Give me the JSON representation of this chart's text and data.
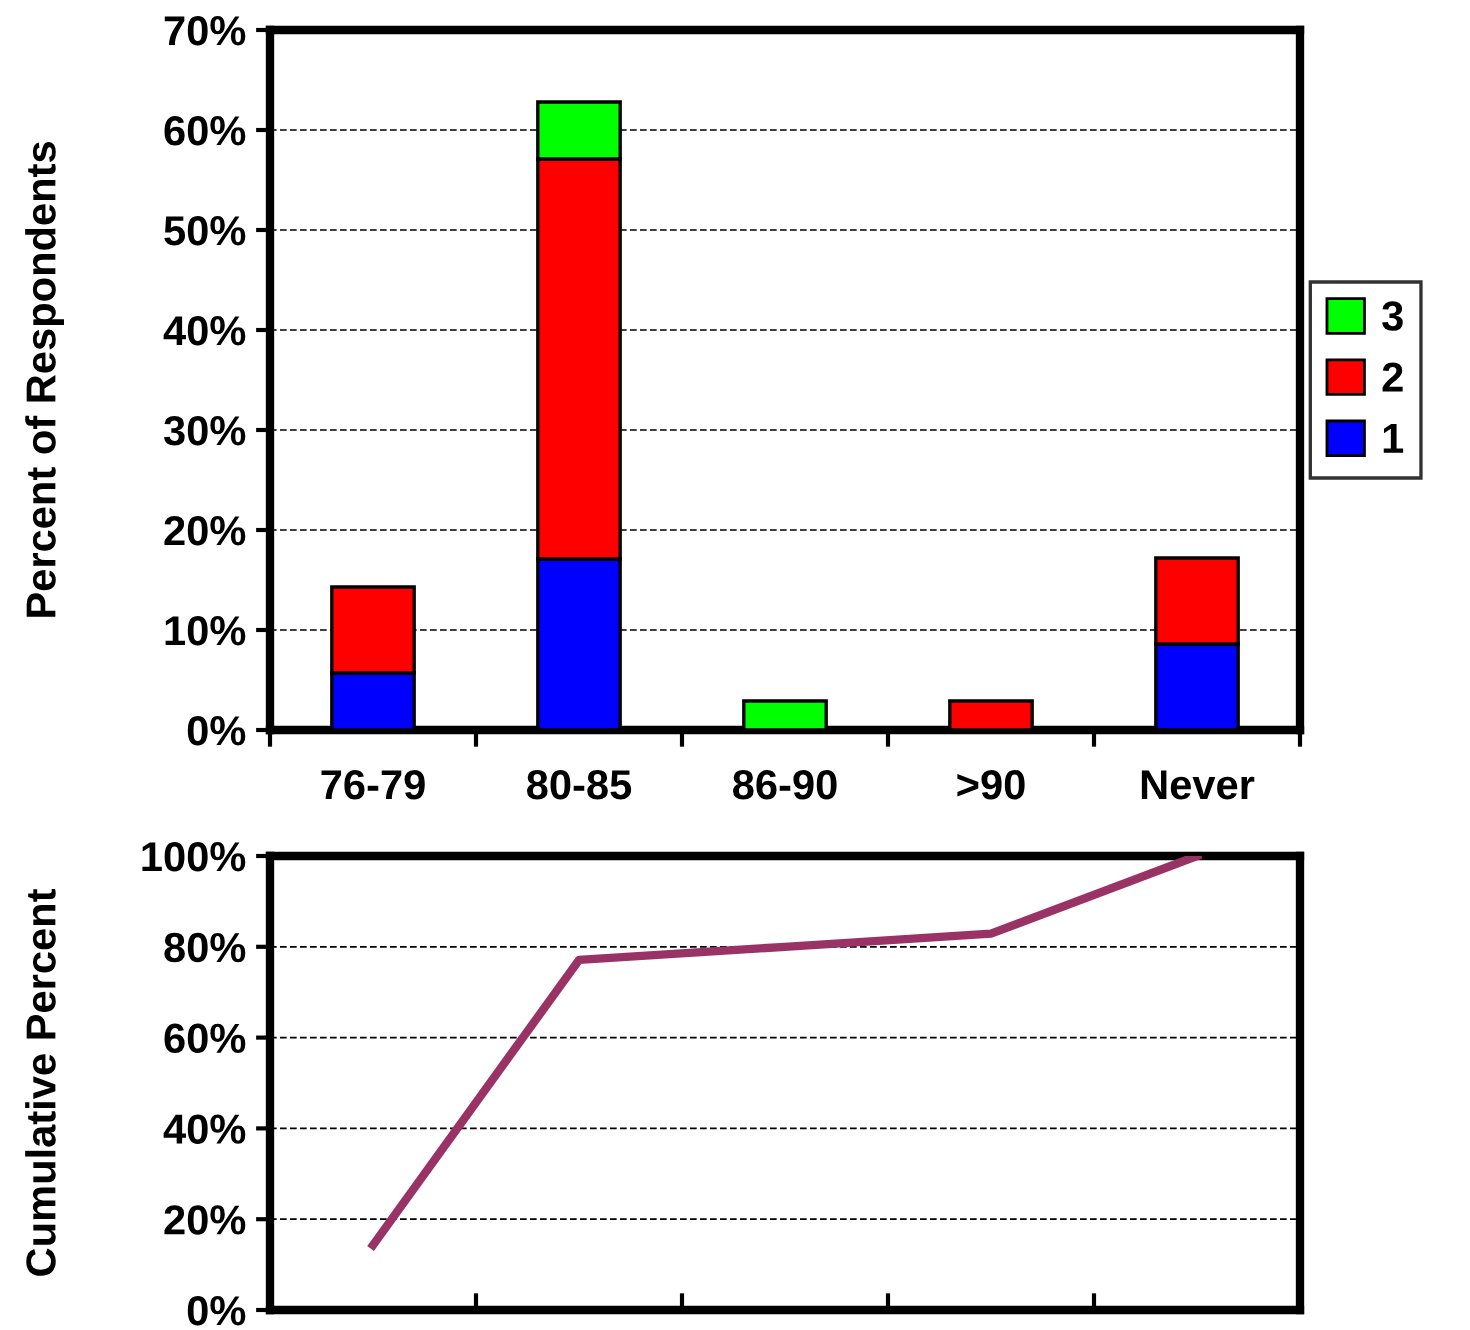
{
  "chart_data": [
    {
      "type": "bar",
      "stacked": true,
      "ylabel": "Percent of Respondents",
      "categories": [
        "76-79",
        "80-85",
        "86-90",
        ">90",
        "Never"
      ],
      "series": [
        {
          "name": "1",
          "color": "#0000ff",
          "values": [
            5.7,
            17.1,
            null,
            null,
            8.6
          ]
        },
        {
          "name": "2",
          "color": "#ff0000",
          "values": [
            8.6,
            40,
            null,
            2.9,
            8.6
          ]
        },
        {
          "name": "3",
          "color": "#00ff00",
          "values": [
            null,
            5.7,
            2.9,
            null,
            null
          ]
        }
      ],
      "ylim": [
        0,
        70
      ],
      "yticks": [
        {
          "value": 0,
          "label": "0%"
        },
        {
          "value": 10,
          "label": "10%"
        },
        {
          "value": 20,
          "label": "20%"
        },
        {
          "value": 30,
          "label": "30%"
        },
        {
          "value": 40,
          "label": "40%"
        },
        {
          "value": 50,
          "label": "50%"
        },
        {
          "value": 60,
          "label": "60%"
        },
        {
          "value": 70,
          "label": "70%"
        }
      ],
      "grid": "y",
      "legend": "right"
    },
    {
      "type": "line",
      "ylabel": "Cumulative Percent",
      "categories": [
        null,
        null,
        null,
        null,
        null
      ],
      "series": [
        {
          "color": "#993366",
          "values": [
            14.3,
            77.1,
            80,
            82.9,
            100
          ]
        }
      ],
      "ylim": [
        0,
        100
      ],
      "yticks": [
        {
          "value": 0,
          "label": "0%"
        },
        {
          "value": 20,
          "label": "20%"
        },
        {
          "value": 40,
          "label": "40%"
        },
        {
          "value": 60,
          "label": "60%"
        },
        {
          "value": 80,
          "label": "80%"
        },
        {
          "value": 100,
          "label": "100%"
        }
      ],
      "grid": "y",
      "tick_labels": "y",
      "marker": "none"
    }
  ]
}
